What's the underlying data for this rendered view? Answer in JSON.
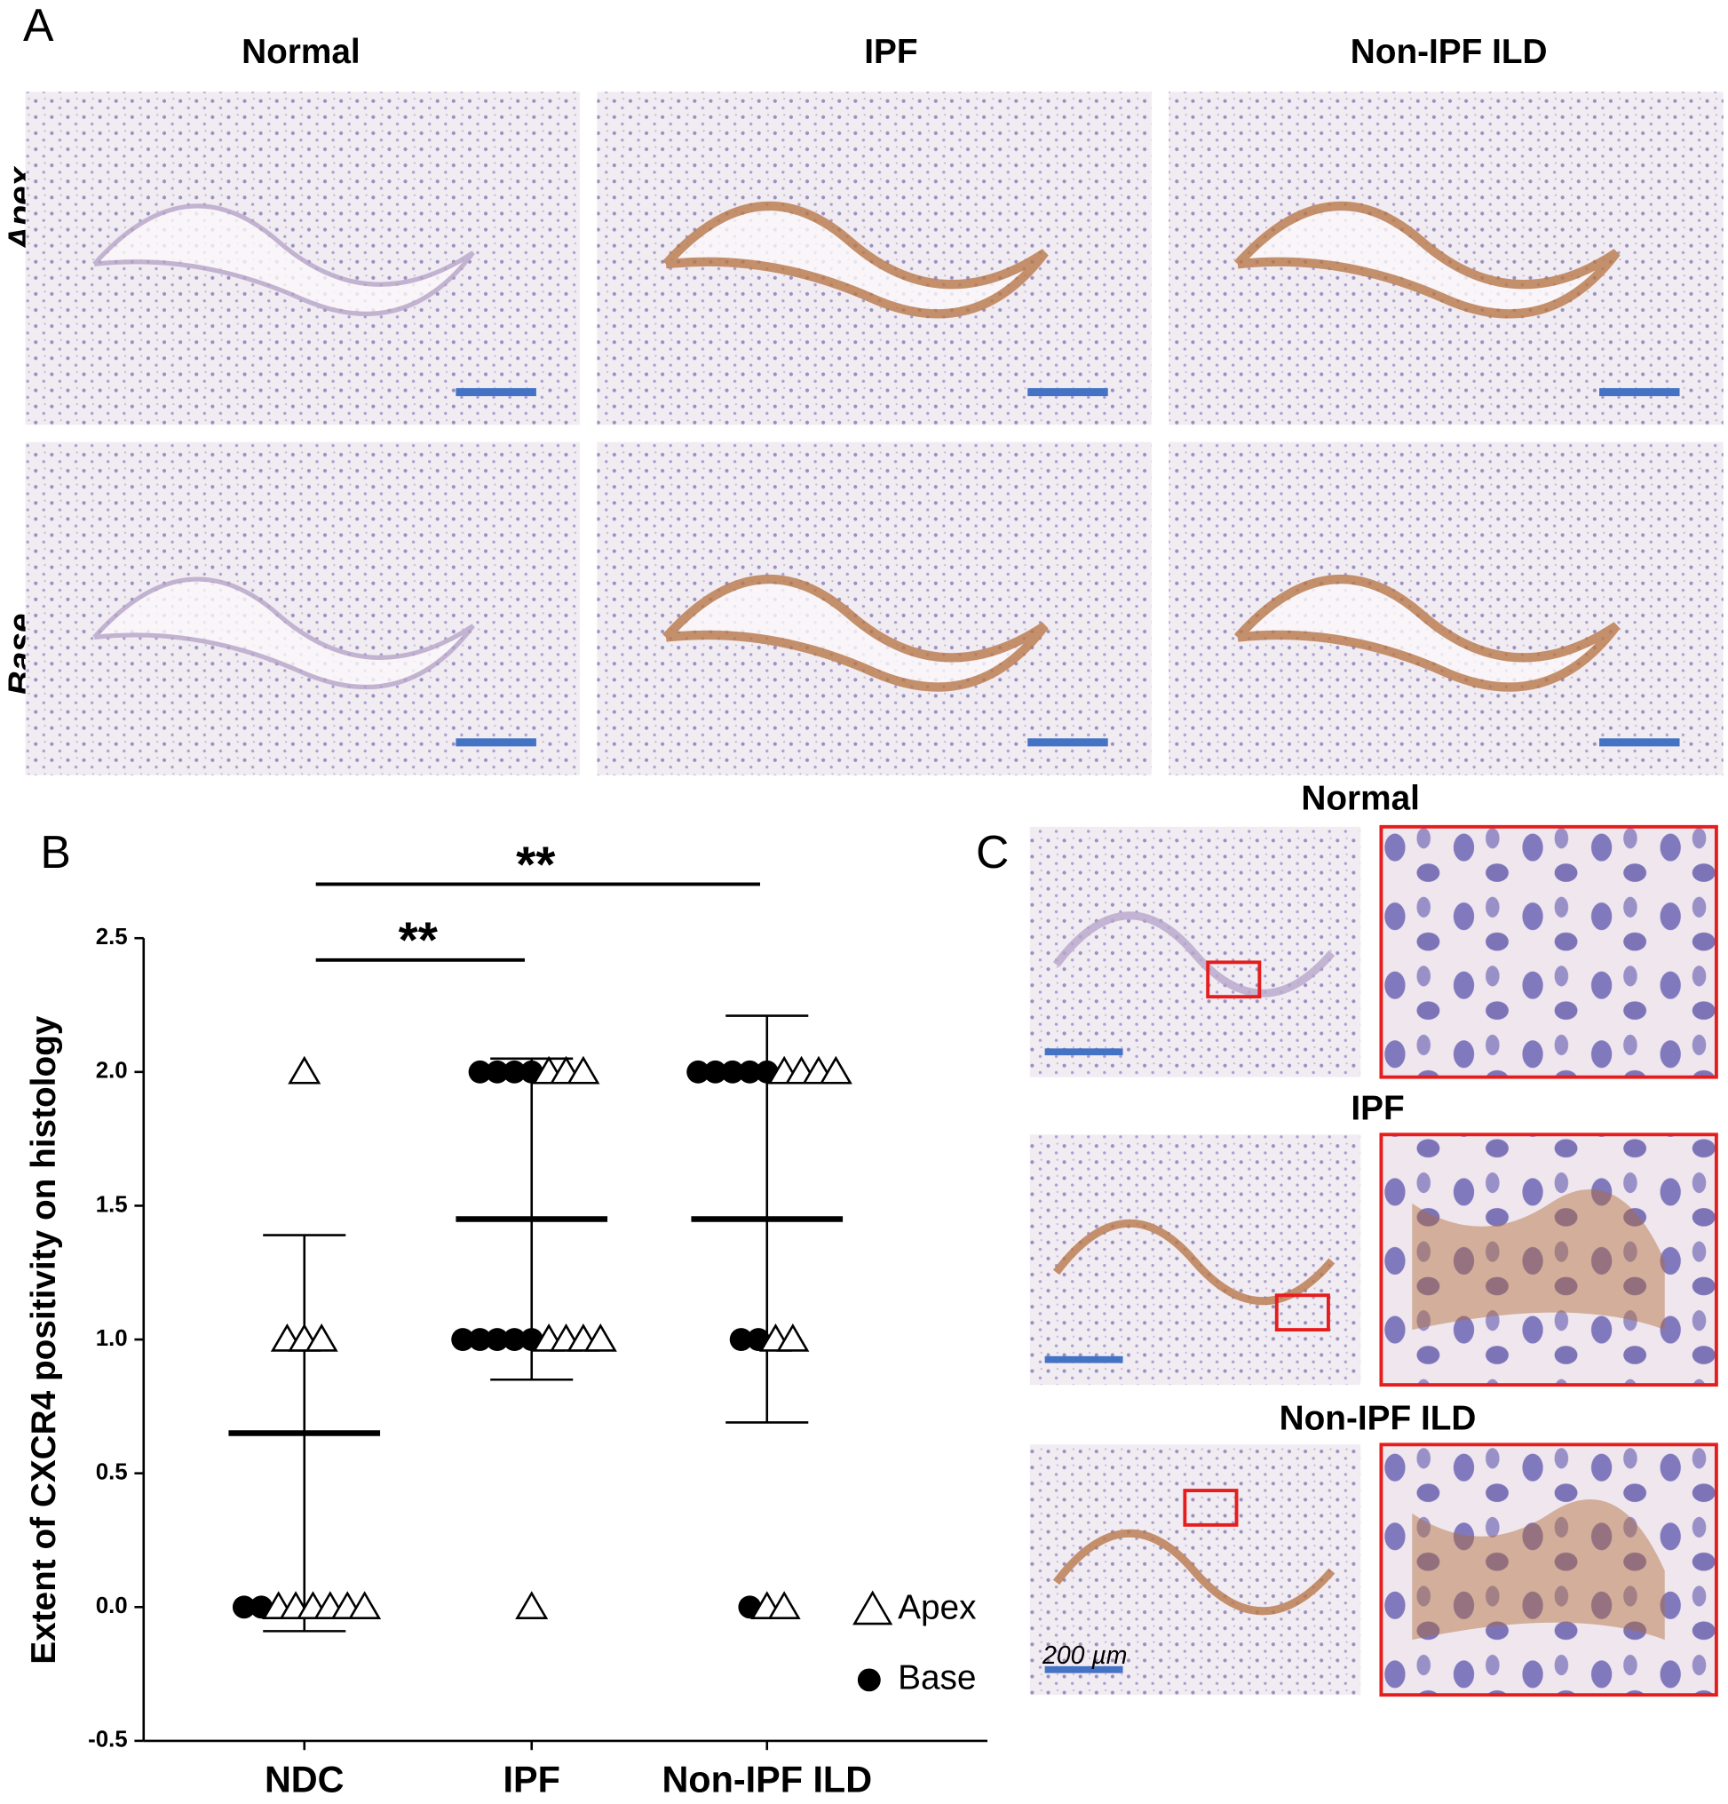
{
  "panel_a": {
    "label": "A",
    "columns": [
      "Normal",
      "IPF",
      "Non-IPF ILD"
    ],
    "rows": [
      "Apex",
      "Base"
    ]
  },
  "chart_data": {
    "type": "scatter",
    "label": "B",
    "y_label": "Extent of CXCR4 positivity on histology",
    "categories": [
      "NDC",
      "IPF",
      "Non-IPF ILD"
    ],
    "series": [
      {
        "name": "Apex",
        "marker": "triangle",
        "color": "#000000",
        "values": [
          [
            2,
            1,
            1,
            1,
            0,
            0,
            0,
            0,
            0,
            0
          ],
          [
            2,
            2,
            2,
            1,
            1,
            1,
            1,
            0
          ],
          [
            2,
            2,
            2,
            2,
            1,
            1,
            0,
            0
          ]
        ]
      },
      {
        "name": "Base",
        "marker": "circle",
        "color": "#000000",
        "values": [
          [
            0,
            0
          ],
          [
            2,
            2,
            2,
            2,
            1,
            1,
            1,
            1,
            1
          ],
          [
            2,
            2,
            2,
            2,
            2,
            1,
            1,
            0
          ]
        ]
      }
    ],
    "mean": [
      0.65,
      1.45,
      1.45
    ],
    "sd": [
      0.74,
      0.6,
      0.76
    ],
    "significance": [
      {
        "from": 0,
        "to": 1,
        "label": "**"
      },
      {
        "from": 0,
        "to": 2,
        "label": "**"
      }
    ],
    "ylim": [
      -0.5,
      2.5
    ],
    "yticks": [
      -0.5,
      {
        "value": 0,
        "label": "0.0"
      },
      0.5,
      {
        "value": 1,
        "label": "1.0"
      },
      1.5,
      {
        "value": 2,
        "label": "2.0"
      },
      2.5
    ],
    "legend": "lower right"
  },
  "panel_c": {
    "label": "C",
    "rows": [
      "Normal",
      "IPF",
      "Non-IPF ILD"
    ],
    "scale_label": "200 µm"
  }
}
